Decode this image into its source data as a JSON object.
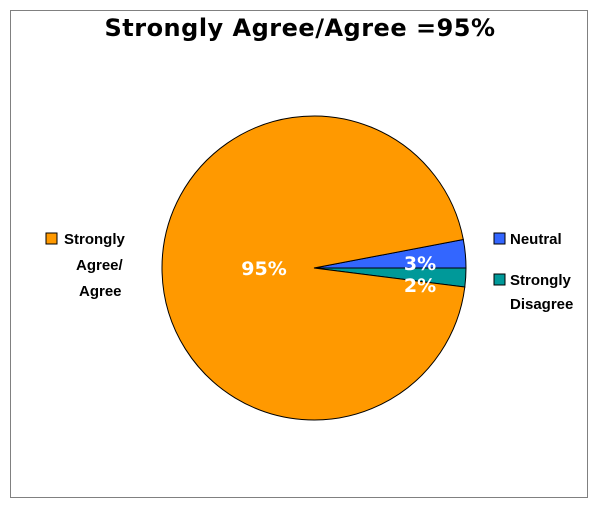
{
  "chart_data": {
    "type": "pie",
    "title": "Strongly Agree/Agree =95%",
    "slices": [
      {
        "name": "Strongly Agree/ Agree",
        "legend_lines": [
          "Strongly",
          "Agree/",
          "Agree"
        ],
        "value": 95,
        "label": "95%",
        "color": "#FF9900"
      },
      {
        "name": "Neutral",
        "legend_lines": [
          "Neutral"
        ],
        "value": 3,
        "label": "3%",
        "color": "#3366FF"
      },
      {
        "name": "Strongly Disagree",
        "legend_lines": [
          "Strongly",
          "Disagree"
        ],
        "value": 2,
        "label": "2%",
        "color": "#009999"
      }
    ],
    "legend": "split-left-right",
    "start": "3 o'clock, counter-clockwise from neutral"
  }
}
